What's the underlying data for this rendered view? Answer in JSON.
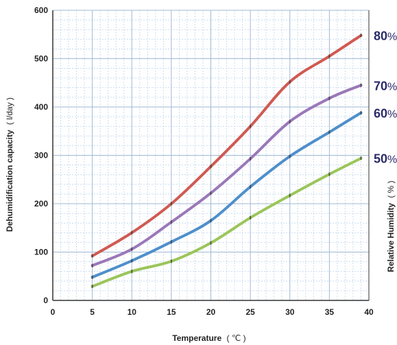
{
  "chart_data": {
    "type": "line",
    "xlabel": "Temperature",
    "xlabel_unit": "( ℃ )",
    "ylabel": "Dehumidification capacity",
    "ylabel_unit": "( l/day )",
    "right_label": "Relative Humidity",
    "right_label_unit": "( % )",
    "xlim": [
      0,
      40
    ],
    "ylim": [
      0,
      600
    ],
    "x_ticks": [
      "0",
      "5",
      "10",
      "15",
      "20",
      "25",
      "30",
      "35",
      "40"
    ],
    "y_ticks": [
      "0",
      "100",
      "200",
      "300",
      "400",
      "500",
      "600"
    ],
    "grid": true,
    "percent_sign": "%",
    "series": [
      {
        "name": "80",
        "color": "#d05a52",
        "x": [
          5,
          10,
          15,
          20,
          25,
          30,
          35,
          39
        ],
        "y": [
          92,
          140,
          200,
          277,
          360,
          452,
          505,
          548
        ]
      },
      {
        "name": "70",
        "color": "#9a78b8",
        "x": [
          5,
          10,
          15,
          20,
          25,
          30,
          35,
          39
        ],
        "y": [
          72,
          106,
          162,
          222,
          293,
          370,
          418,
          445
        ]
      },
      {
        "name": "60",
        "color": "#4f8fcb",
        "x": [
          5,
          10,
          15,
          20,
          25,
          30,
          35,
          39
        ],
        "y": [
          48,
          82,
          121,
          165,
          235,
          298,
          348,
          388
        ]
      },
      {
        "name": "50",
        "color": "#9bc55a",
        "x": [
          5,
          10,
          15,
          20,
          25,
          30,
          35,
          39
        ],
        "y": [
          29,
          60,
          81,
          119,
          171,
          217,
          261,
          294
        ]
      }
    ]
  }
}
